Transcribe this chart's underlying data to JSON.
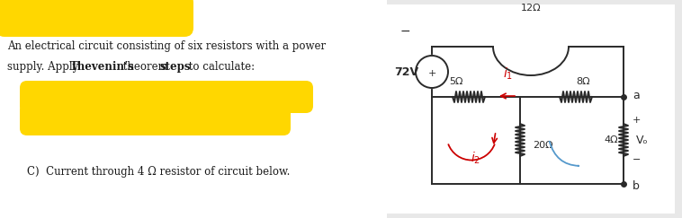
{
  "bg_color": "#e8e8e8",
  "white": "#ffffff",
  "yellow": "#FFD700",
  "text_color": "#1a1a1a",
  "red": "#cc0000",
  "blue_arrow": "#5599cc",
  "circuit_color": "#2a2a2a",
  "label_72V": "72V",
  "label_5ohm": "5Ω",
  "label_8ohm": "8Ω",
  "label_12ohm": "12Ω",
  "label_20ohm": "20Ω",
  "label_4ohm": "4Ω",
  "label_Vo": "Vₒ",
  "label_a": "a",
  "label_b": "b",
  "label_minus": "−",
  "text1": "An electrical circuit consisting of six resistors with a power",
  "text2_part1": "supply. Apply ",
  "text2_bold1": "Thevenin’s",
  "text2_part2": " theorem ",
  "text2_bold2": "steps",
  "text2_part3": " to calculate:",
  "text3": "C)  Current through 4 Ω resistor of circuit below."
}
